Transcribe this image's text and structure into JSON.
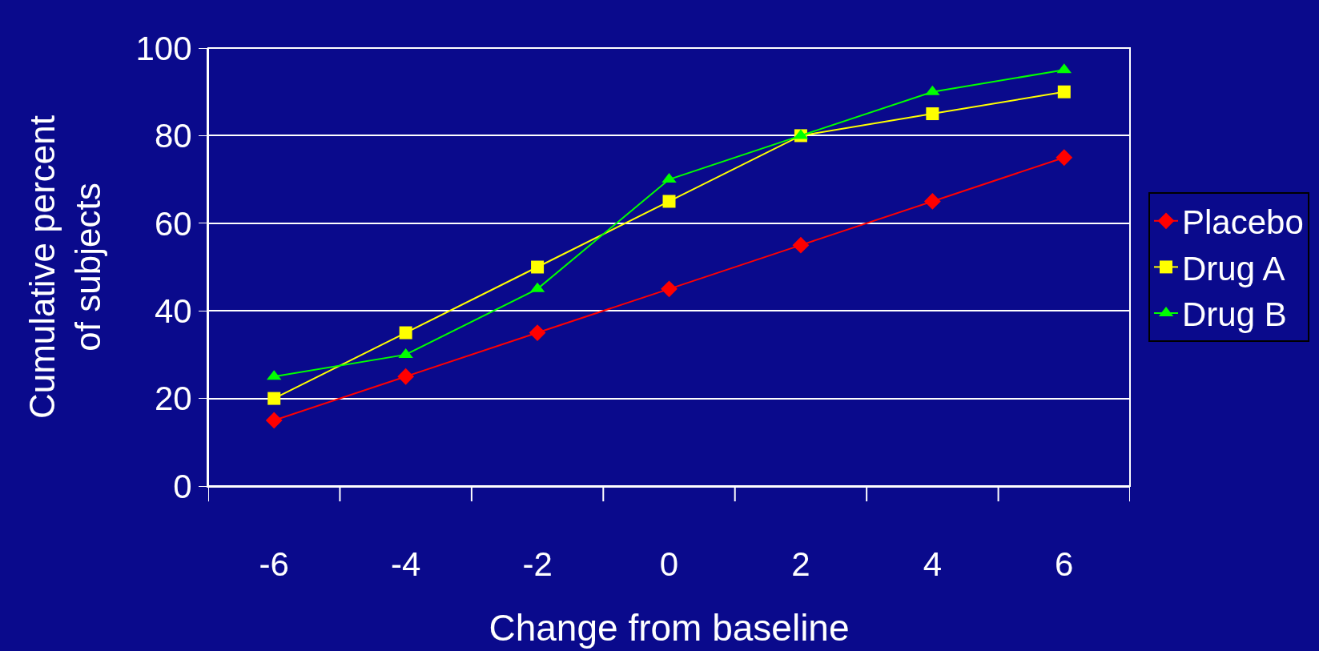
{
  "chart_data": {
    "type": "line",
    "xlabel": "Change from baseline",
    "ylabel": "Cumulative percent\nof subjects",
    "categories": [
      "-6",
      "-4",
      "-2",
      "0",
      "2",
      "4",
      "6"
    ],
    "series": [
      {
        "name": "Placebo",
        "color": "#ff0000",
        "marker": "diamond",
        "values": [
          15,
          25,
          35,
          45,
          55,
          65,
          75
        ]
      },
      {
        "name": "Drug A",
        "color": "#ffff00",
        "marker": "square",
        "values": [
          20,
          35,
          50,
          65,
          80,
          85,
          90
        ]
      },
      {
        "name": "Drug B",
        "color": "#00ff00",
        "marker": "triangle",
        "values": [
          25,
          30,
          45,
          70,
          80,
          90,
          95
        ]
      }
    ],
    "ylim": [
      0,
      100
    ],
    "yticks": [
      0,
      20,
      40,
      60,
      80,
      100
    ],
    "grid": "y",
    "legend": "right",
    "line_style": "solid"
  }
}
